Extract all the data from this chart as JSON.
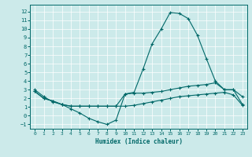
{
  "xlabel": "Humidex (Indice chaleur)",
  "bg_color": "#cceaea",
  "grid_color": "#b0d4d4",
  "line_color": "#006868",
  "xlim": [
    -0.5,
    23.5
  ],
  "ylim": [
    -1.5,
    12.8
  ],
  "xticks": [
    0,
    1,
    2,
    3,
    4,
    5,
    6,
    7,
    8,
    9,
    10,
    11,
    12,
    13,
    14,
    15,
    16,
    17,
    18,
    19,
    20,
    21,
    22,
    23
  ],
  "yticks": [
    -1,
    0,
    1,
    2,
    3,
    4,
    5,
    6,
    7,
    8,
    9,
    10,
    11,
    12
  ],
  "line1_x": [
    0,
    1,
    2,
    3,
    4,
    5,
    6,
    7,
    8,
    9,
    10,
    11,
    12,
    13,
    14,
    15,
    16,
    17,
    18,
    19,
    20,
    21,
    22,
    23
  ],
  "line1_y": [
    3.0,
    2.2,
    1.6,
    1.3,
    0.8,
    0.3,
    -0.3,
    -0.7,
    -1.0,
    -0.5,
    2.5,
    2.7,
    5.4,
    8.3,
    10.0,
    11.9,
    11.8,
    11.2,
    9.3,
    6.6,
    4.0,
    3.0,
    3.0,
    2.2
  ],
  "line2_x": [
    0,
    1,
    2,
    3,
    4,
    5,
    6,
    7,
    8,
    9,
    10,
    11,
    12,
    13,
    14,
    15,
    16,
    17,
    18,
    19,
    20,
    21,
    22,
    23
  ],
  "line2_y": [
    2.8,
    2.0,
    1.7,
    1.3,
    1.1,
    1.1,
    1.1,
    1.1,
    1.1,
    1.1,
    2.5,
    2.6,
    2.6,
    2.7,
    2.8,
    3.0,
    3.2,
    3.4,
    3.5,
    3.6,
    3.8,
    3.0,
    3.0,
    1.3
  ],
  "line3_x": [
    0,
    1,
    2,
    3,
    4,
    5,
    6,
    7,
    8,
    9,
    10,
    11,
    12,
    13,
    14,
    15,
    16,
    17,
    18,
    19,
    20,
    21,
    22,
    23
  ],
  "line3_y": [
    2.8,
    2.0,
    1.7,
    1.3,
    1.1,
    1.1,
    1.1,
    1.1,
    1.1,
    1.1,
    1.1,
    1.2,
    1.4,
    1.6,
    1.8,
    2.0,
    2.2,
    2.3,
    2.4,
    2.5,
    2.6,
    2.7,
    2.4,
    1.2
  ]
}
